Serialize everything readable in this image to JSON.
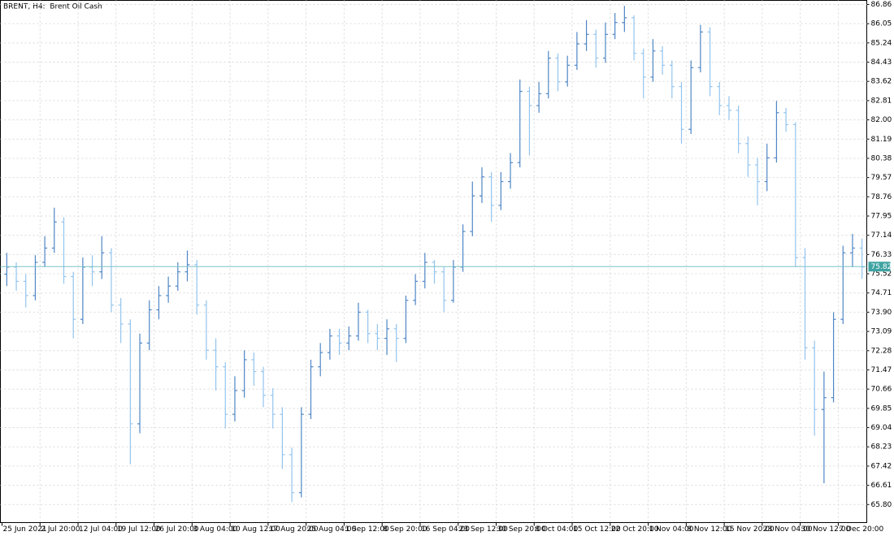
{
  "chart_data": {
    "type": "ohlc",
    "title": "BRENT, H4:  Brent Oil Cash",
    "categories": [
      "25 Jun 2021",
      null,
      null,
      null,
      "2 Jul 20:00",
      null,
      null,
      null,
      "12 Jul 04:00",
      null,
      null,
      null,
      "19 Jul 12:00",
      null,
      null,
      null,
      "26 Jul 20:00",
      null,
      null,
      null,
      "3 Aug 04:00",
      null,
      null,
      null,
      "10 Aug 12:00",
      null,
      null,
      null,
      "17 Aug 20:00",
      null,
      null,
      null,
      "25 Aug 04:00",
      null,
      null,
      null,
      "1 Sep 12:00",
      null,
      null,
      null,
      "8 Sep 20:00",
      null,
      null,
      null,
      "16 Sep 04:00",
      null,
      null,
      null,
      "23 Sep 12:00",
      null,
      null,
      null,
      "30 Sep 20:00",
      null,
      null,
      null,
      "8 Oct 04:00",
      null,
      null,
      null,
      "15 Oct 12:00",
      null,
      null,
      null,
      "22 Oct 20:00",
      null,
      null,
      null,
      "1 Nov 04:00",
      null,
      null,
      null,
      "8 Nov 12:00",
      null,
      null,
      null,
      "15 Nov 20:00",
      null,
      null,
      null,
      "23 Nov 04:00",
      null,
      null,
      null,
      "30 Nov 12:00",
      null,
      null,
      null,
      "7 Dec 20:00",
      null,
      null
    ],
    "open": [
      75.5,
      75.8,
      75.2,
      74.6,
      76.0,
      76.6,
      77.7,
      75.4,
      73.6,
      75.8,
      75.6,
      76.4,
      74.2,
      73.4,
      69.2,
      72.6,
      74.0,
      74.6,
      75.0,
      75.6,
      75.9,
      74.2,
      72.3,
      71.6,
      69.6,
      70.6,
      71.9,
      71.4,
      70.4,
      69.6,
      67.9,
      66.3,
      69.6,
      71.6,
      72.2,
      72.9,
      72.6,
      72.9,
      73.9,
      73.0,
      72.8,
      73.2,
      72.8,
      74.4,
      75.2,
      76.0,
      75.6,
      74.4,
      75.8,
      77.3,
      78.8,
      79.6,
      78.4,
      79.4,
      80.2,
      83.2,
      82.6,
      83.1,
      84.6,
      83.6,
      84.3,
      85.2,
      85.6,
      84.6,
      85.6,
      86.1,
      86.3,
      84.8,
      83.8,
      84.9,
      84.3,
      83.4,
      81.6,
      84.2,
      85.7,
      83.4,
      82.6,
      82.4,
      81.0,
      80.1,
      79.4,
      80.4,
      82.3,
      81.8,
      76.2,
      72.4,
      69.8,
      70.3,
      73.6,
      76.4,
      76.6
    ],
    "high": [
      76.4,
      76.0,
      75.5,
      76.3,
      77.1,
      78.3,
      77.9,
      75.6,
      76.2,
      76.3,
      77.1,
      76.6,
      74.5,
      73.6,
      73.0,
      74.4,
      75.0,
      75.4,
      76.0,
      76.5,
      76.1,
      74.4,
      72.8,
      71.8,
      71.2,
      72.3,
      72.2,
      71.6,
      70.7,
      69.9,
      68.2,
      69.9,
      71.9,
      72.6,
      73.2,
      73.2,
      73.3,
      74.3,
      74.0,
      73.4,
      73.6,
      73.4,
      74.6,
      75.5,
      76.4,
      76.1,
      75.8,
      76.1,
      77.6,
      79.4,
      80.0,
      79.8,
      79.8,
      80.6,
      83.7,
      83.4,
      83.6,
      84.9,
      84.8,
      84.7,
      85.7,
      86.2,
      85.8,
      86.1,
      86.5,
      86.8,
      86.4,
      85.0,
      85.4,
      85.1,
      84.5,
      83.6,
      84.5,
      86.0,
      85.9,
      83.6,
      83.0,
      82.6,
      81.3,
      80.4,
      81.0,
      82.8,
      82.5,
      81.9,
      76.6,
      72.7,
      71.4,
      73.9,
      76.7,
      77.2,
      77.0
    ],
    "low": [
      75.0,
      74.8,
      74.1,
      74.4,
      75.8,
      76.4,
      75.1,
      72.8,
      73.4,
      75.0,
      75.3,
      73.9,
      72.6,
      67.5,
      68.8,
      72.3,
      73.6,
      74.3,
      74.8,
      75.2,
      73.8,
      71.9,
      70.6,
      69.0,
      69.3,
      70.3,
      70.8,
      69.9,
      69.0,
      67.3,
      65.9,
      66.1,
      69.4,
      71.2,
      71.9,
      72.1,
      72.3,
      72.7,
      72.6,
      72.3,
      72.1,
      71.8,
      72.6,
      74.2,
      74.9,
      75.1,
      73.9,
      74.3,
      75.6,
      77.1,
      78.5,
      77.7,
      78.2,
      79.1,
      80.0,
      80.5,
      82.3,
      82.9,
      83.2,
      83.4,
      84.1,
      84.9,
      84.2,
      84.4,
      85.4,
      85.7,
      84.5,
      82.9,
      83.6,
      83.9,
      82.9,
      81.0,
      81.4,
      84.0,
      83.0,
      82.2,
      82.0,
      80.6,
      79.6,
      78.4,
      79.0,
      80.2,
      81.5,
      75.8,
      71.9,
      68.7,
      66.7,
      70.1,
      73.4,
      75.8,
      75.3
    ],
    "close": [
      75.8,
      75.2,
      74.6,
      76.0,
      76.6,
      77.7,
      75.4,
      73.6,
      75.8,
      75.6,
      76.4,
      74.2,
      73.4,
      69.2,
      72.6,
      74.0,
      74.6,
      75.0,
      75.6,
      75.9,
      74.2,
      72.3,
      71.6,
      69.6,
      70.6,
      71.9,
      71.4,
      70.4,
      69.6,
      67.9,
      66.3,
      69.6,
      71.6,
      72.2,
      72.9,
      72.6,
      72.9,
      73.9,
      73.0,
      72.8,
      73.2,
      72.8,
      74.4,
      75.2,
      76.0,
      75.6,
      74.4,
      75.8,
      77.3,
      78.8,
      79.6,
      78.4,
      79.4,
      80.2,
      83.2,
      82.6,
      83.1,
      84.6,
      83.6,
      84.3,
      85.2,
      85.6,
      84.6,
      85.6,
      86.1,
      86.3,
      84.8,
      83.8,
      84.9,
      84.3,
      83.4,
      81.6,
      84.2,
      85.7,
      83.4,
      82.6,
      82.4,
      81.0,
      80.1,
      79.4,
      80.4,
      82.3,
      81.8,
      76.2,
      72.4,
      69.8,
      70.3,
      73.6,
      76.4,
      76.6,
      75.8
    ],
    "up_color": "#4f86c6",
    "down_color": "#93c4ee",
    "last_price": 75.82,
    "price_line_color": "#7cc4c6",
    "price_label_color": "#3fa3a2",
    "ylim": [
      65.04,
      87.03
    ],
    "yticks": [
      86.86,
      86.05,
      85.24,
      84.43,
      83.62,
      82.81,
      {
        "value": 82,
        "label": "82.00"
      },
      81.19,
      80.38,
      79.57,
      78.76,
      77.95,
      77.14,
      76.33,
      75.52,
      74.71,
      {
        "value": 73.9,
        "label": "73.90"
      },
      73.09,
      72.28,
      71.47,
      70.66,
      69.85,
      69.04,
      68.23,
      67.42,
      66.61,
      {
        "value": 65.8,
        "label": "65.80"
      }
    ],
    "grid": true
  }
}
